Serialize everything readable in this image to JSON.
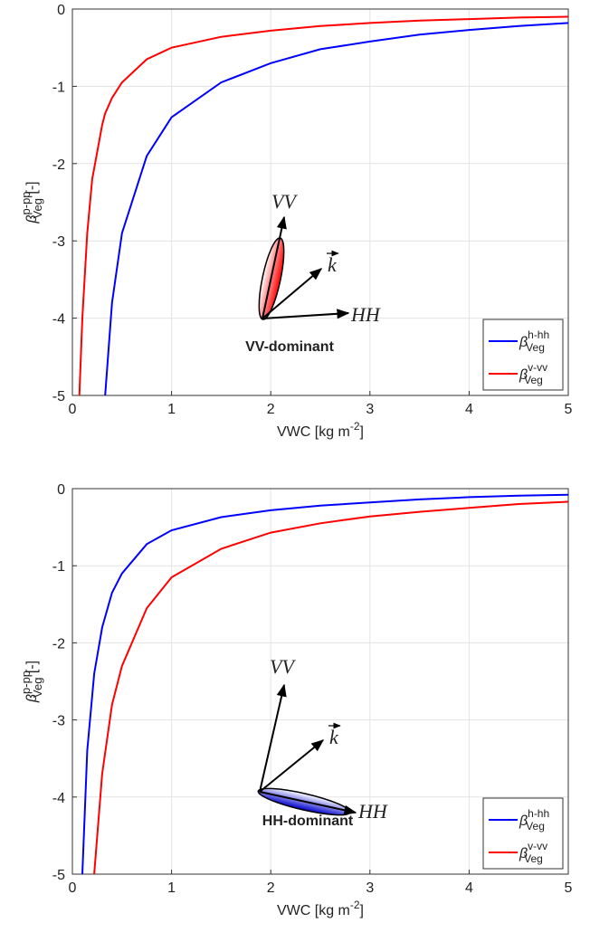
{
  "chart_data": [
    {
      "type": "line",
      "xlabel": {
        "text": "VWC [kg m",
        "sup": "-2",
        "tail": "]"
      },
      "ylabel": {
        "symbol": "β",
        "sup": "p-pp",
        "sub": "Veg",
        "tail": " [-]"
      },
      "x": [
        0.07,
        0.1,
        0.15,
        0.2,
        0.3,
        0.33,
        0.4,
        0.5,
        0.75,
        1,
        1.5,
        2,
        2.5,
        3,
        3.5,
        4,
        4.5,
        5
      ],
      "series": [
        {
          "name": "β",
          "name_sup": "h-hh",
          "name_sub": "Veg",
          "color": "#0000ff",
          "values": [
            null,
            null,
            null,
            null,
            null,
            -5,
            -3.8,
            -2.9,
            -1.9,
            -1.4,
            -0.95,
            -0.7,
            -0.52,
            -0.42,
            -0.33,
            -0.27,
            -0.22,
            -0.18
          ]
        },
        {
          "name": "β",
          "name_sup": "v-vv",
          "name_sub": "Veg",
          "color": "#ff0000",
          "values": [
            -5,
            -4.0,
            -2.9,
            -2.2,
            -1.5,
            -1.35,
            -1.15,
            -0.95,
            -0.65,
            -0.5,
            -0.36,
            -0.28,
            -0.22,
            -0.18,
            -0.15,
            -0.13,
            -0.11,
            -0.1
          ]
        }
      ],
      "xlim": [
        0,
        5
      ],
      "xticks": [
        0,
        1,
        2,
        3,
        4,
        5
      ],
      "ylim": [
        -5,
        0
      ],
      "yticks": [
        -5,
        -4,
        -3,
        -2,
        -1,
        0
      ],
      "grid": true,
      "legend": "lower right",
      "annotation": "VV-dominant",
      "diagram_labels": {
        "vv": "VV",
        "k": "k",
        "hh": "HH"
      },
      "ellipse_color": "#ff0000"
    },
    {
      "type": "line",
      "xlabel": {
        "text": "VWC [kg m",
        "sup": "-2",
        "tail": "]"
      },
      "ylabel": {
        "symbol": "β",
        "sup": "p-pp",
        "sub": "Veg",
        "tail": " [-]"
      },
      "x": [
        0.1,
        0.15,
        0.22,
        0.3,
        0.4,
        0.5,
        0.75,
        1,
        1.5,
        2,
        2.5,
        3,
        3.5,
        4,
        4.5,
        5
      ],
      "series": [
        {
          "name": "β",
          "name_sup": "h-hh",
          "name_sub": "Veg",
          "color": "#0000ff",
          "values": [
            -5,
            -3.4,
            -2.4,
            -1.8,
            -1.35,
            -1.1,
            -0.72,
            -0.54,
            -0.37,
            -0.28,
            -0.22,
            -0.18,
            -0.14,
            -0.11,
            -0.09,
            -0.08
          ]
        },
        {
          "name": "β",
          "name_sup": "v-vv",
          "name_sub": "Veg",
          "color": "#ff0000",
          "values": [
            null,
            null,
            -5,
            -3.7,
            -2.8,
            -2.3,
            -1.55,
            -1.15,
            -0.78,
            -0.57,
            -0.45,
            -0.36,
            -0.3,
            -0.25,
            -0.2,
            -0.17
          ]
        }
      ],
      "xlim": [
        0,
        5
      ],
      "xticks": [
        0,
        1,
        2,
        3,
        4,
        5
      ],
      "ylim": [
        -5,
        0
      ],
      "yticks": [
        -5,
        -4,
        -3,
        -2,
        -1,
        0
      ],
      "grid": true,
      "legend": "lower right",
      "annotation": "HH-dominant",
      "diagram_labels": {
        "vv": "VV",
        "k": "k",
        "hh": "HH"
      },
      "ellipse_color": "#0000cc"
    }
  ]
}
